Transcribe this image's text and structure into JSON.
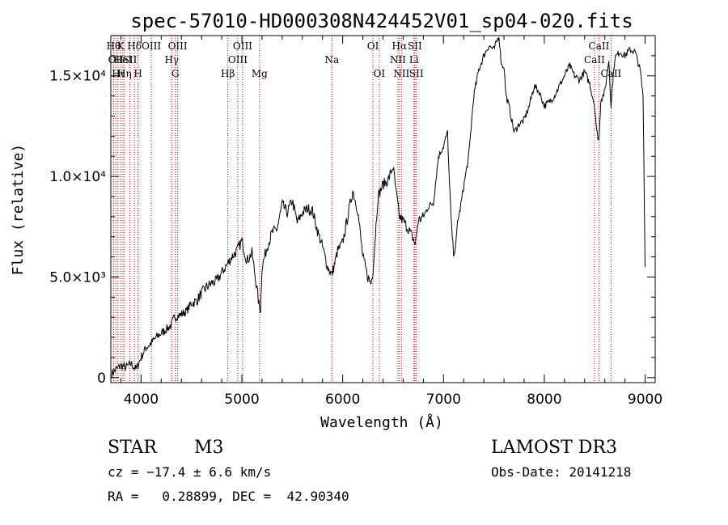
{
  "chart_data": {
    "type": "line",
    "title": "spec-57010-HD000308N424452V01_sp04-020.fits",
    "xlabel": "Wavelength (Å)",
    "ylabel": "Flux (relative)",
    "xlim": [
      3700,
      9100
    ],
    "ylim": [
      -250,
      17000
    ],
    "x_ticks": [
      {
        "value": 4000,
        "label": "4000"
      },
      {
        "value": 5000,
        "label": "5000"
      },
      {
        "value": 6000,
        "label": "6000"
      },
      {
        "value": 7000,
        "label": "7000"
      },
      {
        "value": 8000,
        "label": "8000"
      },
      {
        "value": 9000,
        "label": "9000"
      }
    ],
    "y_ticks": [
      {
        "value": 0,
        "label": "0"
      },
      {
        "value": 5000,
        "label": "5.0×10³"
      },
      {
        "value": 10000,
        "label": "1.0×10⁴"
      },
      {
        "value": 15000,
        "label": "1.5×10⁴"
      }
    ],
    "series": [
      {
        "name": "flux",
        "x": [
          3710,
          3750,
          3800,
          3850,
          3900,
          3950,
          4000,
          4050,
          4100,
          4150,
          4200,
          4250,
          4300,
          4330,
          4380,
          4450,
          4500,
          4550,
          4600,
          4650,
          4700,
          4750,
          4800,
          4850,
          4900,
          4950,
          5000,
          5050,
          5100,
          5150,
          5170,
          5185,
          5200,
          5250,
          5300,
          5350,
          5400,
          5450,
          5500,
          5550,
          5600,
          5650,
          5700,
          5750,
          5800,
          5850,
          5893,
          5950,
          6000,
          6050,
          6100,
          6150,
          6200,
          6250,
          6280,
          6300,
          6350,
          6400,
          6450,
          6500,
          6530,
          6563,
          6600,
          6650,
          6700,
          6720,
          6750,
          6800,
          6850,
          6900,
          6950,
          7000,
          7040,
          7060,
          7080,
          7100,
          7120,
          7140,
          7160,
          7200,
          7250,
          7300,
          7350,
          7400,
          7450,
          7500,
          7550,
          7570,
          7580,
          7600,
          7620,
          7650,
          7700,
          7750,
          7800,
          7850,
          7900,
          7950,
          8000,
          8050,
          8100,
          8150,
          8200,
          8250,
          8300,
          8350,
          8400,
          8450,
          8500,
          8520,
          8542,
          8560,
          8600,
          8640,
          8662,
          8680,
          8700,
          8750,
          8800,
          8850,
          8900,
          8950,
          8980,
          9000
        ],
        "values": [
          200,
          400,
          600,
          500,
          700,
          400,
          1000,
          1500,
          1700,
          2000,
          2200,
          2400,
          2600,
          3000,
          3100,
          3300,
          3700,
          3800,
          4200,
          4500,
          4700,
          4800,
          5200,
          5600,
          6000,
          6300,
          6800,
          5800,
          6200,
          4400,
          3600,
          3400,
          5500,
          6500,
          7200,
          7400,
          8600,
          8200,
          8800,
          7700,
          8200,
          8400,
          8300,
          7300,
          6500,
          5500,
          5100,
          6300,
          6700,
          8000,
          9300,
          8300,
          6000,
          5000,
          4700,
          5300,
          9000,
          9600,
          9800,
          10500,
          9200,
          8000,
          7800,
          7400,
          6900,
          6600,
          7800,
          8000,
          8500,
          8700,
          11000,
          11500,
          12200,
          9500,
          7500,
          6200,
          6400,
          7800,
          8200,
          9500,
          11000,
          14000,
          15300,
          16000,
          16500,
          16300,
          17000,
          15800,
          15500,
          15500,
          14000,
          13500,
          12200,
          12600,
          12800,
          13500,
          14500,
          14200,
          13500,
          13700,
          14000,
          14500,
          15000,
          15500,
          15000,
          14800,
          15200,
          14600,
          13500,
          12200,
          11800,
          13800,
          14200,
          15800,
          13500,
          14800,
          15900,
          16200,
          16000,
          16300,
          16200,
          15300,
          14000,
          5500
        ]
      }
    ],
    "lines": [
      {
        "x": 3728,
        "row": 0,
        "label": "Hθ"
      },
      {
        "x": 3750,
        "row": 1,
        "label": "OII"
      },
      {
        "x": 3771,
        "row": 2,
        "label": "Hι"
      },
      {
        "x": 3798,
        "row": 0,
        "label": "K"
      },
      {
        "x": 3820,
        "row": 1,
        "label": "HeI"
      },
      {
        "x": 3835,
        "row": 2,
        "label": "Hη"
      },
      {
        "x": 3889,
        "row": 1,
        "label": "SII"
      },
      {
        "x": 3934,
        "row": 0,
        "label": "Hδ"
      },
      {
        "x": 3970,
        "row": 2,
        "label": "H"
      },
      {
        "x": 4102,
        "row": 0,
        "label": "OIII"
      },
      {
        "x": 4304,
        "row": 1,
        "label": "Hγ"
      },
      {
        "x": 4340,
        "row": 2,
        "label": "G"
      },
      {
        "x": 4363,
        "row": 0,
        "label": "OIII"
      },
      {
        "x": 4861,
        "row": 2,
        "label": "Hβ"
      },
      {
        "x": 4959,
        "row": 1,
        "label": "OIII"
      },
      {
        "x": 5007,
        "row": 0,
        "label": "OIII"
      },
      {
        "x": 5175,
        "row": 2,
        "label": "Mg"
      },
      {
        "x": 5893,
        "row": 1,
        "label": "Na"
      },
      {
        "x": 6300,
        "row": 0,
        "label": "OI"
      },
      {
        "x": 6363,
        "row": 2,
        "label": "OI"
      },
      {
        "x": 6548,
        "row": 1,
        "label": "NII"
      },
      {
        "x": 6563,
        "row": 0,
        "label": "Hα"
      },
      {
        "x": 6583,
        "row": 2,
        "label": "NII"
      },
      {
        "x": 6707,
        "row": 1,
        "label": "Li"
      },
      {
        "x": 6716,
        "row": 0,
        "label": "SII"
      },
      {
        "x": 6731,
        "row": 2,
        "label": "SII"
      },
      {
        "x": 8498,
        "row": 1,
        "label": "CaII"
      },
      {
        "x": 8542,
        "row": 0,
        "label": "CaII"
      },
      {
        "x": 8662,
        "row": 2,
        "label": "CaII"
      }
    ]
  },
  "info": {
    "object_class": "STAR",
    "subclass": "M3",
    "cz": "cz = −17.4 ± 6.6 km/s",
    "coords": "RA =   0.28899, DEC =  42.90340",
    "survey": "LAMOST DR3",
    "obs_date": "Obs-Date: 20141218"
  }
}
